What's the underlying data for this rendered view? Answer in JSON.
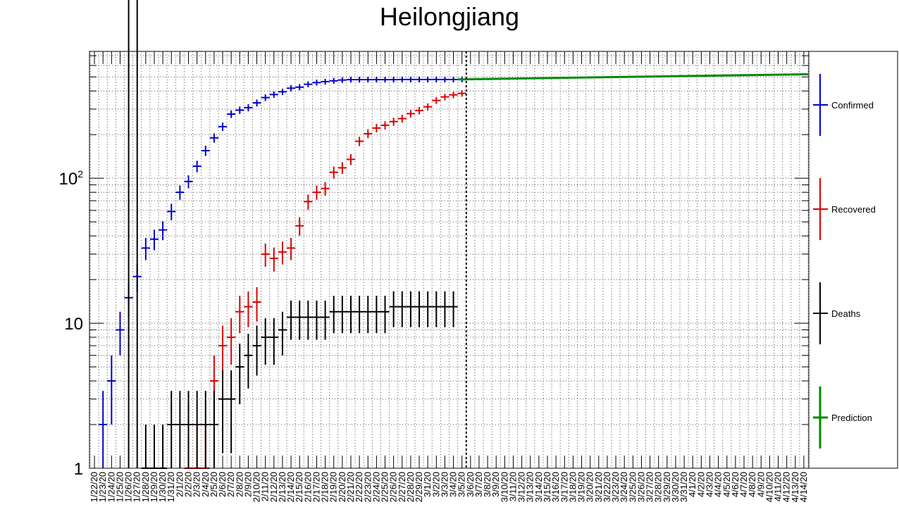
{
  "chart_data": {
    "type": "scatter",
    "title": "Heilongjiang",
    "yscale": "log",
    "ylim": [
      1,
      750
    ],
    "ytick_labels": [
      {
        "value": 1,
        "base": "1",
        "sup": ""
      },
      {
        "value": 10,
        "base": "10",
        "sup": ""
      },
      {
        "value": 100,
        "base": "10",
        "sup": "2"
      }
    ],
    "grid": true,
    "legend_position": "right",
    "divider_after": "3/5/20",
    "x": [
      "1/22/20",
      "1/23/20",
      "1/24/20",
      "1/25/20",
      "1/26/20",
      "1/27/20",
      "1/28/20",
      "1/29/20",
      "1/30/20",
      "1/31/20",
      "2/1/20",
      "2/2/20",
      "2/3/20",
      "2/4/20",
      "2/5/20",
      "2/6/20",
      "2/7/20",
      "2/8/20",
      "2/9/20",
      "2/10/20",
      "2/11/20",
      "2/12/20",
      "2/13/20",
      "2/14/20",
      "2/15/20",
      "2/16/20",
      "2/17/20",
      "2/18/20",
      "2/19/20",
      "2/20/20",
      "2/21/20",
      "2/22/20",
      "2/23/20",
      "2/24/20",
      "2/25/20",
      "2/26/20",
      "2/27/20",
      "2/28/20",
      "2/29/20",
      "3/1/20",
      "3/2/20",
      "3/3/20",
      "3/4/20",
      "3/5/20",
      "3/6/20",
      "3/7/20",
      "3/8/20",
      "3/9/20",
      "3/10/20",
      "3/11/20",
      "3/12/20",
      "3/13/20",
      "3/14/20",
      "3/15/20",
      "3/16/20",
      "3/17/20",
      "3/18/20",
      "3/19/20",
      "3/20/20",
      "3/21/20",
      "3/22/20",
      "3/23/20",
      "3/24/20",
      "3/25/20",
      "3/26/20",
      "3/27/20",
      "3/28/20",
      "3/29/20",
      "3/30/20",
      "3/31/20",
      "4/1/20",
      "4/2/20",
      "4/3/20",
      "4/4/20",
      "4/5/20",
      "4/6/20",
      "4/7/20",
      "4/8/20",
      "4/9/20",
      "4/10/20",
      "4/11/20",
      "4/12/20",
      "4/13/20",
      "4/14/20"
    ],
    "series": [
      {
        "name": "Confirmed",
        "color": "#0000cc",
        "x_start": "1/23/20",
        "values": [
          2,
          4,
          9,
          15,
          21,
          33,
          38,
          44,
          59,
          80,
          95,
          121,
          155,
          190,
          227,
          277,
          295,
          307,
          331,
          360,
          378,
          395,
          418,
          425,
          445,
          457,
          464,
          470,
          476,
          479,
          479,
          479,
          479,
          479,
          479,
          480,
          480,
          480,
          480,
          480,
          480,
          480,
          481
        ]
      },
      {
        "name": "Recovered",
        "color": "#dd0000",
        "x_start": "2/2/20",
        "values": [
          1,
          1,
          1,
          4,
          7,
          8,
          12,
          13,
          14,
          30,
          28,
          31,
          33,
          47,
          69,
          80,
          85,
          110,
          118,
          135,
          180,
          203,
          222,
          232,
          246,
          258,
          279,
          293,
          311,
          344,
          364,
          376,
          385
        ]
      },
      {
        "name": "Deaths",
        "color": "#000000",
        "x_start": "1/26/20",
        "values": [
          0,
          0,
          1,
          1,
          1,
          2,
          2,
          2,
          2,
          2,
          2,
          3,
          3,
          5,
          6,
          7,
          8,
          8,
          9,
          11,
          11,
          11,
          11,
          11,
          12,
          12,
          12,
          12,
          12,
          12,
          12,
          13,
          13,
          13,
          13,
          13,
          13,
          13,
          13
        ]
      },
      {
        "name": "Prediction",
        "color": "#008800",
        "x_start": "3/5/20",
        "values": [
          481,
          482,
          483,
          484,
          485,
          486,
          487,
          488,
          489,
          490,
          491,
          492,
          493,
          494,
          495,
          496,
          497,
          498,
          499,
          500,
          501,
          502,
          503,
          504,
          505,
          506,
          507,
          508,
          509,
          510,
          511,
          512,
          513,
          514,
          515,
          516,
          517,
          518,
          519,
          520,
          521
        ]
      }
    ]
  }
}
